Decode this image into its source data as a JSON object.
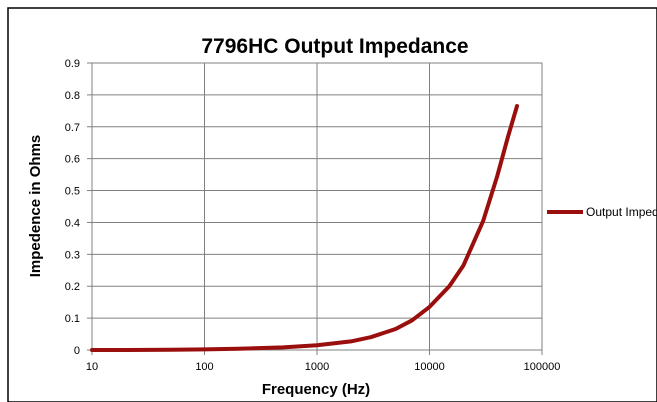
{
  "chart_data": {
    "type": "line",
    "title": "7796HC Output Impedance",
    "xlabel": "Frequency (Hz)",
    "ylabel": "Impedence in Ohms",
    "x_scale": "log",
    "xlim": [
      10,
      100000
    ],
    "ylim": [
      0,
      0.9
    ],
    "x_ticks": [
      "10",
      "100",
      "1000",
      "10000",
      "100000"
    ],
    "y_ticks": [
      "0",
      "0.1",
      "0.2",
      "0.3",
      "0.4",
      "0.5",
      "0.6",
      "0.7",
      "0.8",
      "0.9"
    ],
    "grid": true,
    "legend_position": "right",
    "series": [
      {
        "name": "Output Impedance",
        "color": "#9b0e0e",
        "x": [
          10,
          20,
          50,
          100,
          200,
          500,
          1000,
          2000,
          3000,
          5000,
          7000,
          10000,
          15000,
          20000,
          30000,
          40000,
          50000,
          60000
        ],
        "y": [
          0.0,
          0.0,
          0.001,
          0.002,
          0.004,
          0.008,
          0.015,
          0.027,
          0.04,
          0.066,
          0.093,
          0.135,
          0.2,
          0.265,
          0.405,
          0.545,
          0.67,
          0.765
        ]
      }
    ]
  }
}
